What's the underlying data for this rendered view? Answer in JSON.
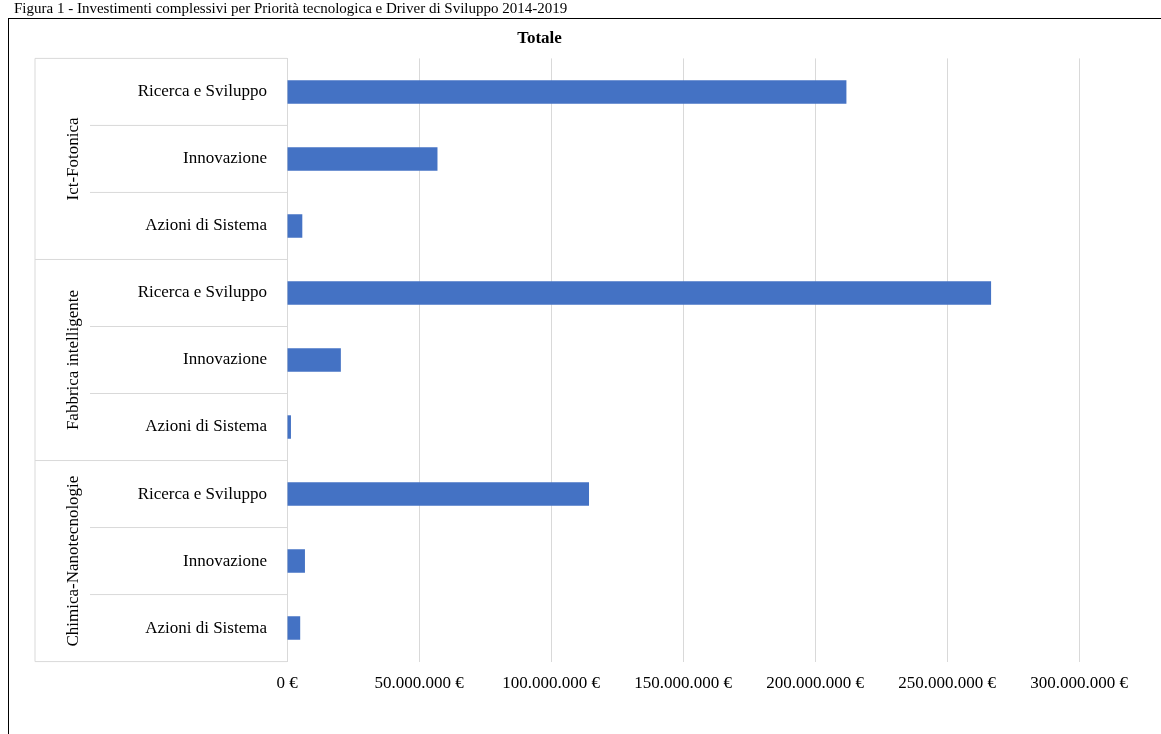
{
  "chart_data": {
    "type": "bar",
    "orientation": "horizontal",
    "title": "Totale",
    "categories": [
      "Ricerca e Sviluppo",
      "Innovazione",
      "Azioni di Sistema",
      "Ricerca e Sviluppo",
      "Innovazione",
      "Azioni di Sistema",
      "Ricerca e Sviluppo",
      "Innovazione",
      "Azioni di Sistema"
    ],
    "values": [
      211900000,
      57000000,
      5800000,
      266700000,
      20400000,
      1500000,
      114400000,
      6800000,
      5000000
    ],
    "color": "#4472c4",
    "xlim": [
      0,
      300000000
    ],
    "xticks": [
      {
        "value": 0,
        "label": "0 €"
      },
      {
        "value": 50000000,
        "label": "50.000.000 €"
      },
      {
        "value": 100000000,
        "label": "100.000.000 €"
      },
      {
        "value": 150000000,
        "label": "150.000.000 €"
      },
      {
        "value": 200000000,
        "label": "200.000.000 €"
      },
      {
        "value": 250000000,
        "label": "250.000.000 €"
      },
      {
        "value": 300000000,
        "label": "300.000.000 €"
      }
    ],
    "grid": "x",
    "legend": false,
    "annotations": [
      "Figura 1 - Investimenti complessivi per Priorità tecnologica e Driver di Sviluppo 2014-2019",
      "Ict-Fotonica",
      "Fabbrica intelligente",
      "Chimica-Nanotecnologie"
    ]
  }
}
